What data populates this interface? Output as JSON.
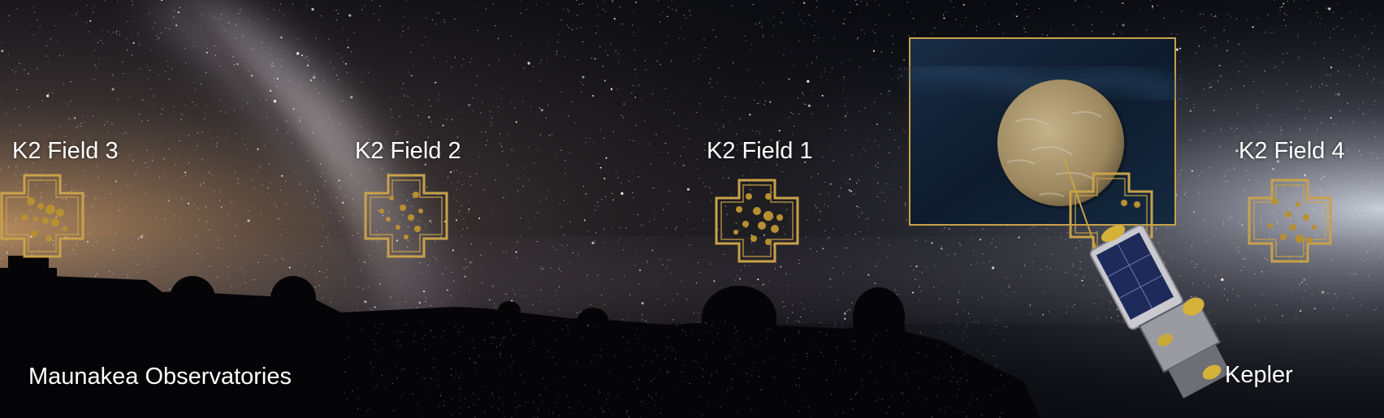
{
  "labels": {
    "field3": "K2 Field 3",
    "field2": "K2 Field 2",
    "field1": "K2 Field 1",
    "field4": "K2 Field 4",
    "observatories": "Maunakea Observatories",
    "kepler": "Kepler"
  },
  "colors": {
    "sky": "#0a0b10",
    "milky_way": "#c9c2c8",
    "horizon_glow": "#c8955a",
    "field_outline": "#c9a14a",
    "star_dots": "#b89030",
    "silhouette": "#050507",
    "planet": "#a8946a",
    "inset_bg": "#0d1c2e"
  },
  "icons": {
    "field_footprint": "kepler-field-footprint-icon",
    "spacecraft": "kepler-spacecraft-icon",
    "planet": "exoplanet-illustration"
  }
}
